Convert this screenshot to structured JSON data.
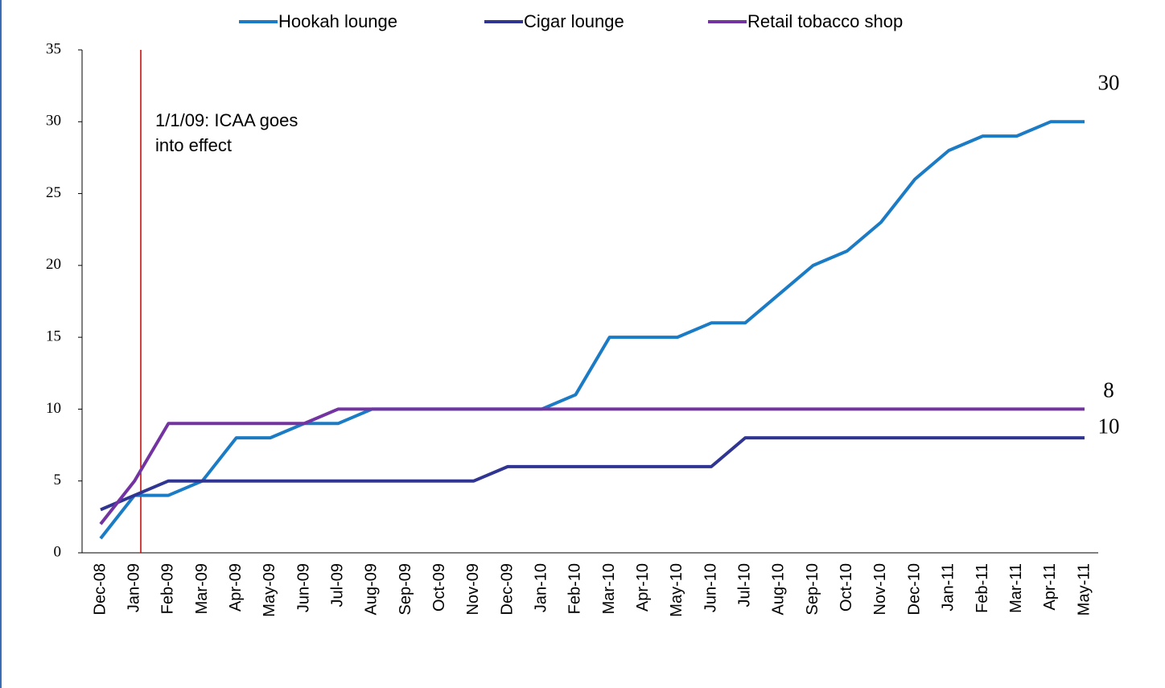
{
  "chart_data": {
    "type": "line",
    "categories": [
      "Dec-08",
      "Jan-09",
      "Feb-09",
      "Mar-09",
      "Apr-09",
      "May-09",
      "Jun-09",
      "Jul-09",
      "Aug-09",
      "Sep-09",
      "Oct-09",
      "Nov-09",
      "Dec-09",
      "Jan-10",
      "Feb-10",
      "Mar-10",
      "Apr-10",
      "May-10",
      "Jun-10",
      "Jul-10",
      "Aug-10",
      "Sep-10",
      "Oct-10",
      "Nov-10",
      "Dec-10",
      "Jan-11",
      "Feb-11",
      "Mar-11",
      "Apr-11",
      "May-11"
    ],
    "series": [
      {
        "name": "Hookah lounge",
        "color": "#1b7bc4",
        "values": [
          1,
          4,
          4,
          5,
          8,
          8,
          9,
          9,
          10,
          10,
          10,
          10,
          10,
          10,
          11,
          15,
          15,
          15,
          16,
          16,
          18,
          20,
          21,
          23,
          26,
          28,
          29,
          29,
          30,
          30
        ]
      },
      {
        "name": "Cigar lounge",
        "color": "#2f3591",
        "values": [
          3,
          4,
          5,
          5,
          5,
          5,
          5,
          5,
          5,
          5,
          5,
          5,
          6,
          6,
          6,
          6,
          6,
          6,
          6,
          8,
          8,
          8,
          8,
          8,
          8,
          8,
          8,
          8,
          8,
          8
        ]
      },
      {
        "name": "Retail tobacco shop",
        "color": "#7334a2",
        "values": [
          2,
          5,
          9,
          9,
          9,
          9,
          9,
          10,
          10,
          10,
          10,
          10,
          10,
          10,
          10,
          10,
          10,
          10,
          10,
          10,
          10,
          10,
          10,
          10,
          10,
          10,
          10,
          10,
          10,
          10
        ]
      }
    ],
    "ylim": [
      0,
      35
    ],
    "yticks": [
      0,
      5,
      10,
      15,
      20,
      25,
      30,
      35
    ],
    "annotation": "1/1/09: ICAA goes into effect",
    "legend": "top"
  }
}
